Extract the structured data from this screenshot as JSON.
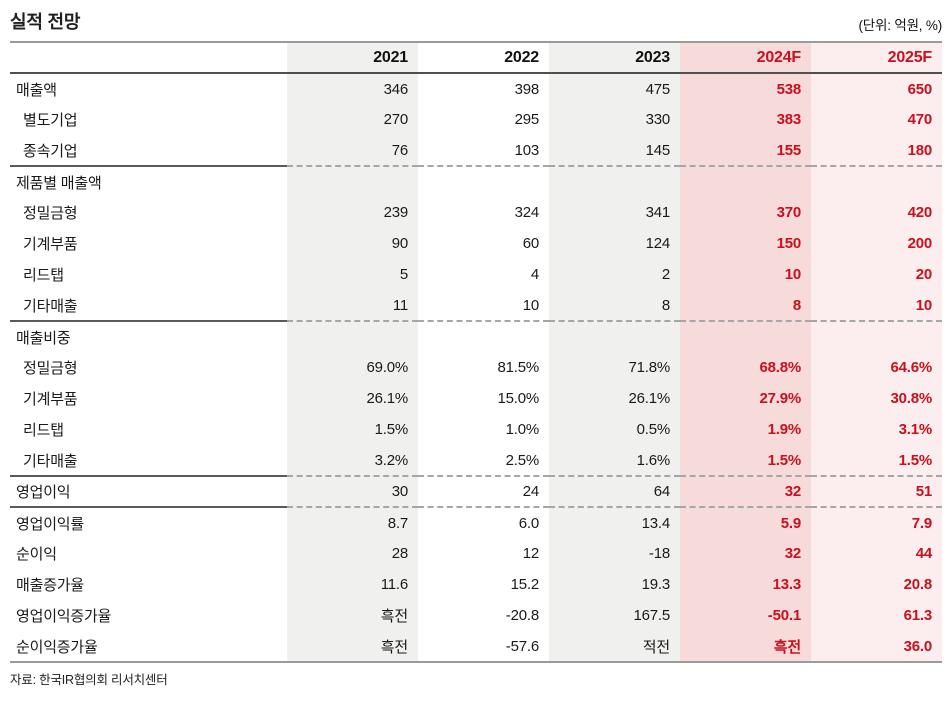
{
  "title": "실적 전망",
  "unit_note": "(단위: 억원, %)",
  "source": "자료: 한국IR협의회 리서치센터",
  "colors": {
    "accent_red": "#c8101e",
    "historical_column_grey": "#f0f0ee",
    "forecast_2024_pink": "#f7dada",
    "forecast_2025_pink_light": "#fceeee"
  },
  "table": {
    "columns": [
      "",
      "2021",
      "2022",
      "2023",
      "2024F",
      "2025F"
    ],
    "forecast_columns": [
      "2024F",
      "2025F"
    ],
    "rows": [
      {
        "label": "매출액",
        "indent": false,
        "divider": false,
        "values": [
          "346",
          "398",
          "475",
          "538",
          "650"
        ]
      },
      {
        "label": "별도기업",
        "indent": true,
        "divider": false,
        "values": [
          "270",
          "295",
          "330",
          "383",
          "470"
        ]
      },
      {
        "label": "종속기업",
        "indent": true,
        "divider": false,
        "values": [
          "76",
          "103",
          "145",
          "155",
          "180"
        ]
      },
      {
        "label": "제품별 매출액",
        "indent": false,
        "divider": true,
        "values": [
          "",
          "",
          "",
          "",
          ""
        ]
      },
      {
        "label": "정밀금형",
        "indent": true,
        "divider": false,
        "values": [
          "239",
          "324",
          "341",
          "370",
          "420"
        ]
      },
      {
        "label": "기계부품",
        "indent": true,
        "divider": false,
        "values": [
          "90",
          "60",
          "124",
          "150",
          "200"
        ]
      },
      {
        "label": "리드탭",
        "indent": true,
        "divider": false,
        "values": [
          "5",
          "4",
          "2",
          "10",
          "20"
        ]
      },
      {
        "label": "기타매출",
        "indent": true,
        "divider": false,
        "values": [
          "11",
          "10",
          "8",
          "8",
          "10"
        ]
      },
      {
        "label": "매출비중",
        "indent": false,
        "divider": true,
        "values": [
          "",
          "",
          "",
          "",
          ""
        ]
      },
      {
        "label": "정밀금형",
        "indent": true,
        "divider": false,
        "values": [
          "69.0%",
          "81.5%",
          "71.8%",
          "68.8%",
          "64.6%"
        ]
      },
      {
        "label": "기계부품",
        "indent": true,
        "divider": false,
        "values": [
          "26.1%",
          "15.0%",
          "26.1%",
          "27.9%",
          "30.8%"
        ]
      },
      {
        "label": "리드탭",
        "indent": true,
        "divider": false,
        "values": [
          "1.5%",
          "1.0%",
          "0.5%",
          "1.9%",
          "3.1%"
        ]
      },
      {
        "label": "기타매출",
        "indent": true,
        "divider": false,
        "values": [
          "3.2%",
          "2.5%",
          "1.6%",
          "1.5%",
          "1.5%"
        ]
      },
      {
        "label": "영업이익",
        "indent": false,
        "divider": true,
        "values": [
          "30",
          "24",
          "64",
          "32",
          "51"
        ]
      },
      {
        "label": "영업이익률",
        "indent": false,
        "divider": true,
        "values": [
          "8.7",
          "6.0",
          "13.4",
          "5.9",
          "7.9"
        ]
      },
      {
        "label": "순이익",
        "indent": false,
        "divider": false,
        "values": [
          "28",
          "12",
          "-18",
          "32",
          "44"
        ]
      },
      {
        "label": "매출증가율",
        "indent": false,
        "divider": false,
        "values": [
          "11.6",
          "15.2",
          "19.3",
          "13.3",
          "20.8"
        ]
      },
      {
        "label": "영업이익증가율",
        "indent": false,
        "divider": false,
        "values": [
          "흑전",
          "-20.8",
          "167.5",
          "-50.1",
          "61.3"
        ]
      },
      {
        "label": "순이익증가율",
        "indent": false,
        "divider": false,
        "values": [
          "흑전",
          "-57.6",
          "적전",
          "흑전",
          "36.0"
        ]
      }
    ]
  }
}
